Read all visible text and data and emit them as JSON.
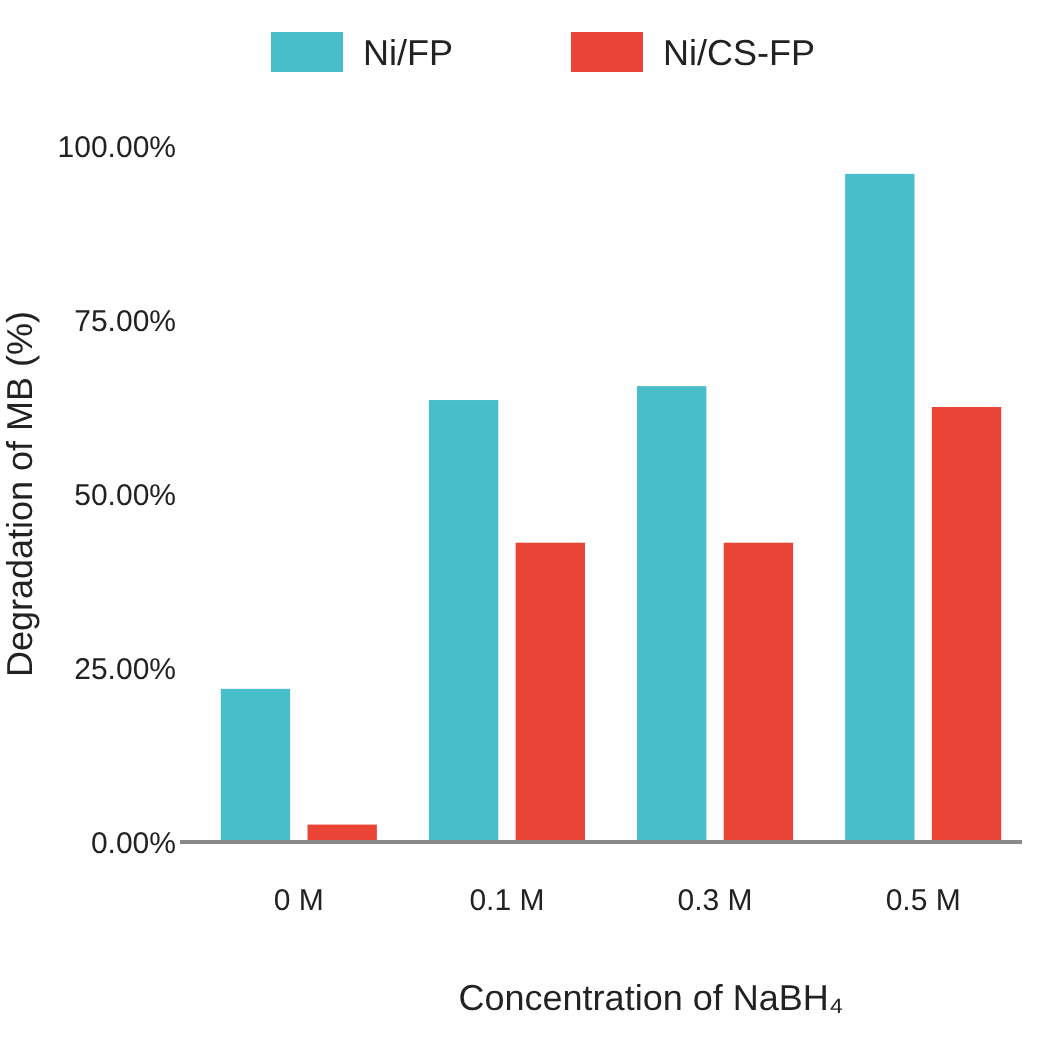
{
  "chart_data": {
    "type": "bar",
    "xlabel": "Concentration of NaBH₄",
    "ylabel": "Degradation of MB (%)",
    "categories": [
      "0 M",
      "0.1 M",
      "0.3 M",
      "0.5 M"
    ],
    "series": [
      {
        "name": "Ni/FP",
        "color": "#47bec8",
        "values": [
          22,
          63.5,
          65.5,
          96
        ]
      },
      {
        "name": "Ni/CS-FP",
        "color": "#e94436",
        "values": [
          2.5,
          43,
          43,
          62.5
        ]
      }
    ],
    "ylim": [
      0,
      100
    ],
    "yticks": [
      {
        "value": 0,
        "label": "0.00%"
      },
      {
        "value": 25,
        "label": "25.00%"
      },
      {
        "value": 50,
        "label": "50.00%"
      },
      {
        "value": 75,
        "label": "75.00%"
      },
      {
        "value": 100,
        "label": "100.00%"
      }
    ],
    "legend": "top",
    "grid": false
  }
}
